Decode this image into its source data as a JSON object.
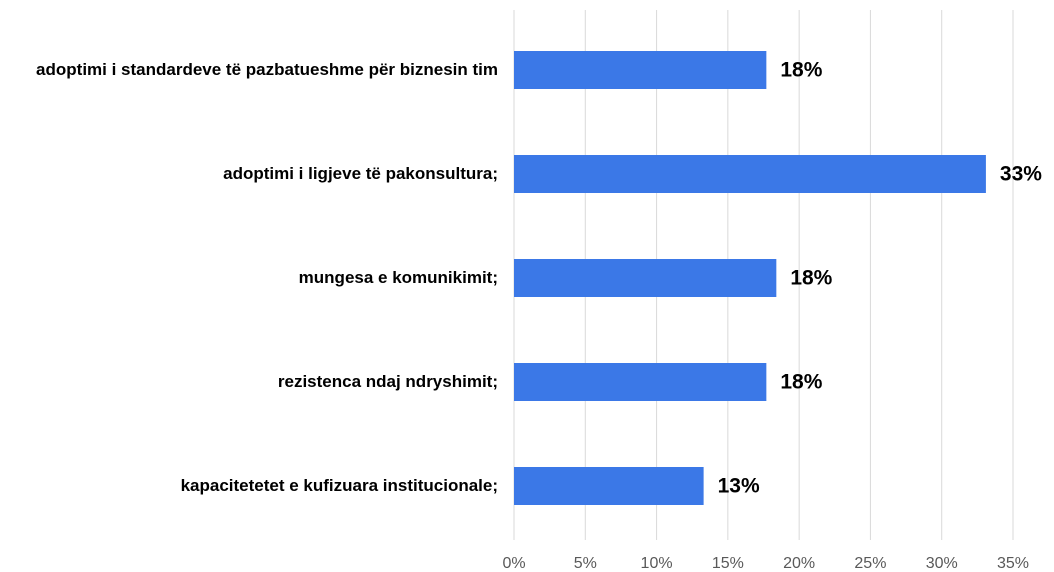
{
  "chart_data": {
    "type": "barh",
    "categories": [
      "adoptimi i standardeve të pazbatueshme për biznesin tim",
      "adoptimi i ligjeve të pakonsultura;",
      "mungesa e komunikimit;",
      "rezistenca ndaj ndryshimit;",
      "kapacitetetet e kufizuara institucionale;"
    ],
    "values": [
      17.7,
      33.1,
      18.4,
      17.7,
      13.3
    ],
    "value_labels": [
      "18%",
      "33%",
      "18%",
      "18%",
      "13%"
    ],
    "color": "#3b78e7",
    "xlim": [
      0,
      35
    ],
    "xticks": [
      {
        "value": 0,
        "label": "0%"
      },
      {
        "value": 5,
        "label": "5%"
      },
      {
        "value": 10,
        "label": "10%"
      },
      {
        "value": 15,
        "label": "15%"
      },
      {
        "value": 20,
        "label": "20%"
      },
      {
        "value": 25,
        "label": "25%"
      },
      {
        "value": 30,
        "label": "30%"
      },
      {
        "value": 35,
        "label": "35%"
      }
    ],
    "grid": true
  }
}
